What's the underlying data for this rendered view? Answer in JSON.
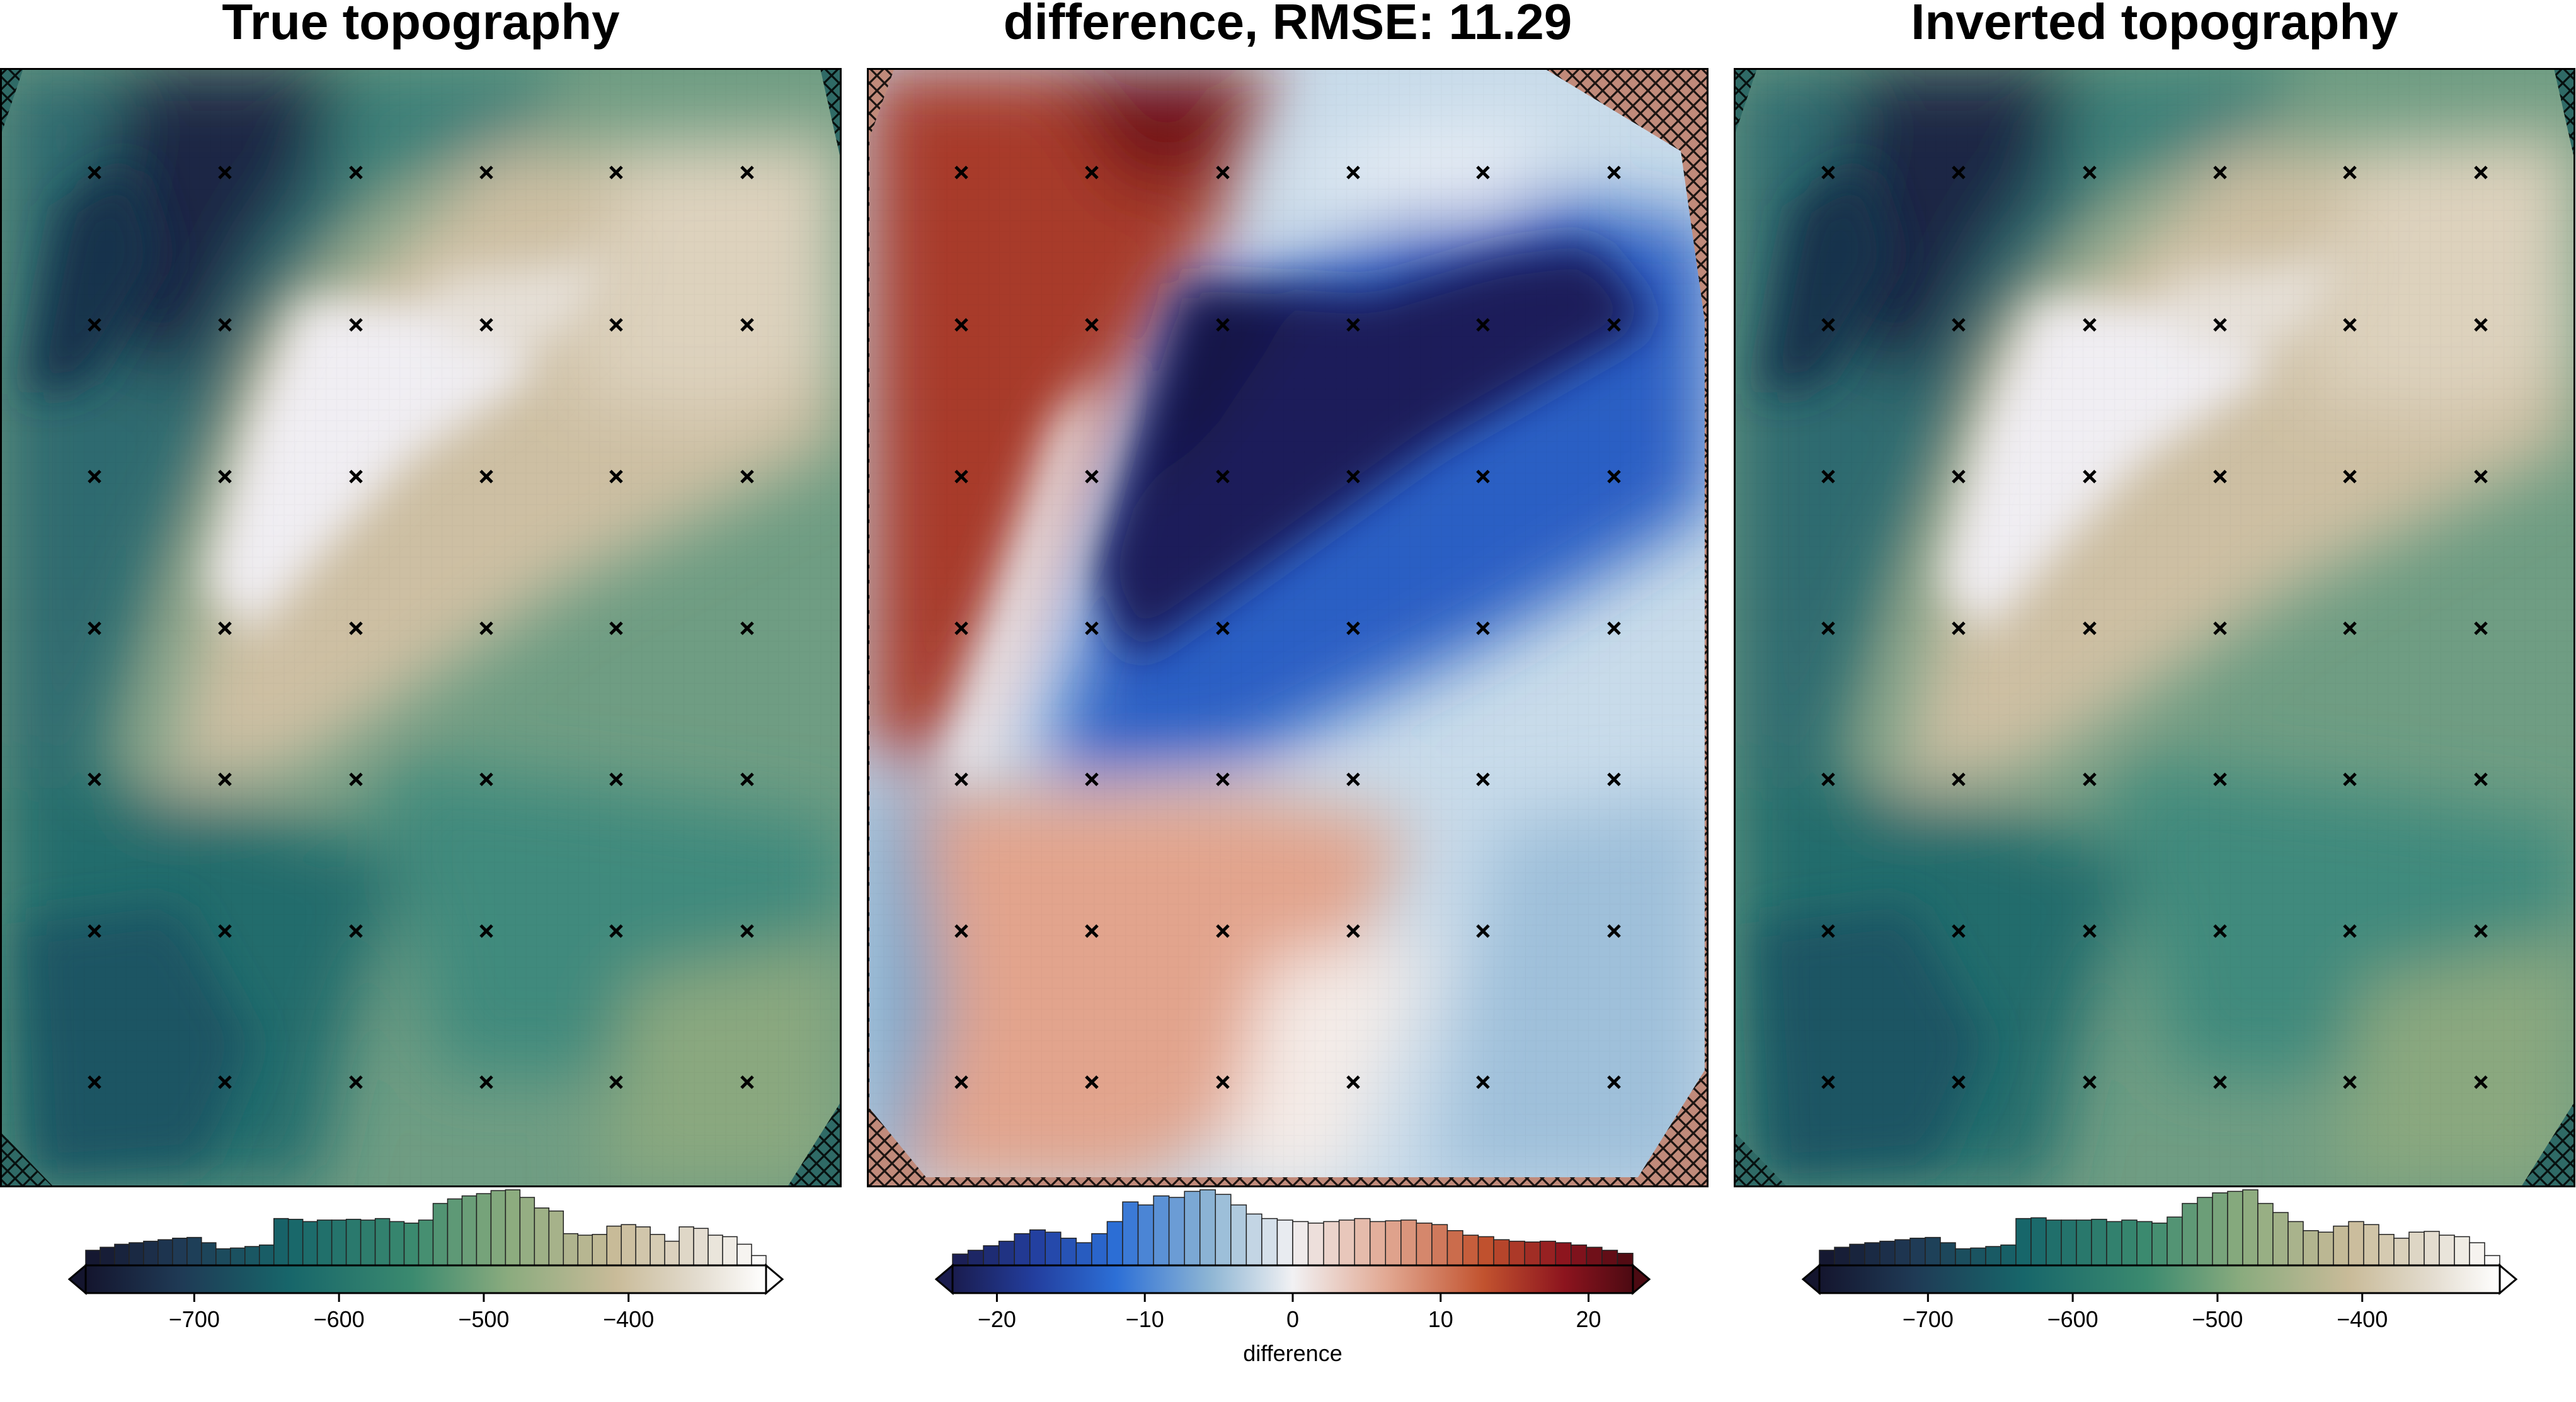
{
  "chart_data": [
    {
      "type": "heatmap",
      "title": "True topography",
      "colormap": "topography (dark navy - teal - green - tan - white)",
      "colorbar": {
        "ticks": [
          -700,
          -600,
          -500,
          -400
        ],
        "range": [
          -775,
          -305
        ],
        "extend": "both",
        "label": "",
        "histogram": [
          0.2,
          0.24,
          0.28,
          0.3,
          0.32,
          0.34,
          0.36,
          0.37,
          0.3,
          0.22,
          0.23,
          0.25,
          0.27,
          0.62,
          0.61,
          0.58,
          0.6,
          0.6,
          0.61,
          0.6,
          0.62,
          0.58,
          0.56,
          0.6,
          0.82,
          0.88,
          0.92,
          0.95,
          0.99,
          1.0,
          0.9,
          0.76,
          0.72,
          0.42,
          0.4,
          0.41,
          0.52,
          0.54,
          0.51,
          0.41,
          0.32,
          0.51,
          0.49,
          0.4,
          0.38,
          0.28,
          0.13
        ]
      },
      "markers": {
        "symbol": "x",
        "rows": 7,
        "cols": 6
      }
    },
    {
      "type": "heatmap",
      "title": "difference, RMSE: 11.29",
      "rmse": 11.29,
      "colormap": "diverging (blue - white - red)",
      "colorbar": {
        "ticks": [
          -20,
          -10,
          0,
          10,
          20
        ],
        "range": [
          -23,
          23
        ],
        "extend": "both",
        "label": "difference",
        "histogram": [
          0.15,
          0.2,
          0.26,
          0.32,
          0.42,
          0.47,
          0.44,
          0.36,
          0.3,
          0.42,
          0.58,
          0.84,
          0.8,
          0.92,
          0.9,
          0.98,
          1.0,
          0.94,
          0.8,
          0.68,
          0.62,
          0.6,
          0.58,
          0.56,
          0.58,
          0.6,
          0.62,
          0.58,
          0.59,
          0.6,
          0.56,
          0.54,
          0.46,
          0.4,
          0.38,
          0.34,
          0.32,
          0.31,
          0.32,
          0.3,
          0.27,
          0.24,
          0.2,
          0.16
        ]
      },
      "markers": {
        "symbol": "x",
        "rows": 7,
        "cols": 6
      }
    },
    {
      "type": "heatmap",
      "title": "Inverted topography",
      "colormap": "topography (dark navy - teal - green - tan - white)",
      "colorbar": {
        "ticks": [
          -700,
          -600,
          -500,
          -400
        ],
        "range": [
          -775,
          -305
        ],
        "extend": "both",
        "label": "",
        "histogram": [
          0.2,
          0.24,
          0.28,
          0.3,
          0.32,
          0.34,
          0.36,
          0.37,
          0.3,
          0.22,
          0.23,
          0.25,
          0.27,
          0.62,
          0.63,
          0.6,
          0.6,
          0.6,
          0.61,
          0.58,
          0.6,
          0.58,
          0.56,
          0.64,
          0.82,
          0.9,
          0.96,
          0.98,
          1.0,
          0.82,
          0.7,
          0.58,
          0.46,
          0.44,
          0.52,
          0.58,
          0.54,
          0.41,
          0.36,
          0.44,
          0.45,
          0.4,
          0.38,
          0.3,
          0.13
        ]
      },
      "markers": {
        "symbol": "x",
        "rows": 7,
        "cols": 6
      }
    }
  ]
}
